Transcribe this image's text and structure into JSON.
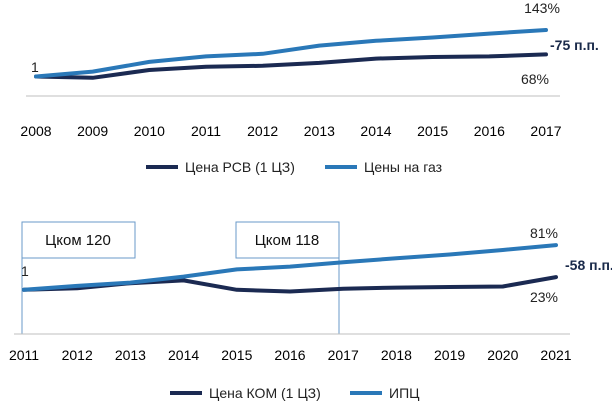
{
  "chart_data": [
    {
      "type": "line",
      "x": [
        2008,
        2009,
        2010,
        2011,
        2012,
        2013,
        2014,
        2015,
        2016,
        2017
      ],
      "series": [
        {
          "name": "Цена РСВ (1 ЦЗ)",
          "color": "#1b2a52",
          "values": [
            1.0,
            0.96,
            1.2,
            1.3,
            1.33,
            1.42,
            1.55,
            1.6,
            1.62,
            1.68
          ]
        },
        {
          "name": "Цены на газ",
          "color": "#2a78b8",
          "values": [
            1.0,
            1.15,
            1.45,
            1.62,
            1.7,
            1.95,
            2.1,
            2.2,
            2.32,
            2.43
          ]
        }
      ],
      "ylim": [
        0.4,
        3.2
      ],
      "grid": false,
      "legend": "bottom",
      "annotations": {
        "start": "1",
        "upper_end": "143%",
        "lower_end": "68%",
        "gap": "-75 п.п."
      }
    },
    {
      "type": "line",
      "x": [
        2011,
        2012,
        2013,
        2014,
        2015,
        2016,
        2017,
        2018,
        2019,
        2020,
        2021
      ],
      "series": [
        {
          "name": "Цена КОМ (1 ЦЗ)",
          "color": "#1b2a52",
          "values": [
            1.0,
            1.03,
            1.12,
            1.17,
            1.0,
            0.97,
            1.02,
            1.04,
            1.05,
            1.06,
            1.23
          ]
        },
        {
          "name": "ИПЦ",
          "color": "#2a78b8",
          "values": [
            1.0,
            1.07,
            1.13,
            1.24,
            1.37,
            1.42,
            1.5,
            1.57,
            1.64,
            1.72,
            1.81
          ]
        }
      ],
      "ylim": [
        0.2,
        2.3
      ],
      "grid": false,
      "legend": "bottom",
      "periods": [
        {
          "label": "Цком 120",
          "from": 2011,
          "to": 2016.5
        },
        {
          "label": "Цком 118",
          "from": 2016.5,
          "to": 2017
        }
      ],
      "annotations": {
        "start": "1",
        "upper_end": "81%",
        "lower_end": "23%",
        "gap": "-58 п.п."
      }
    }
  ]
}
